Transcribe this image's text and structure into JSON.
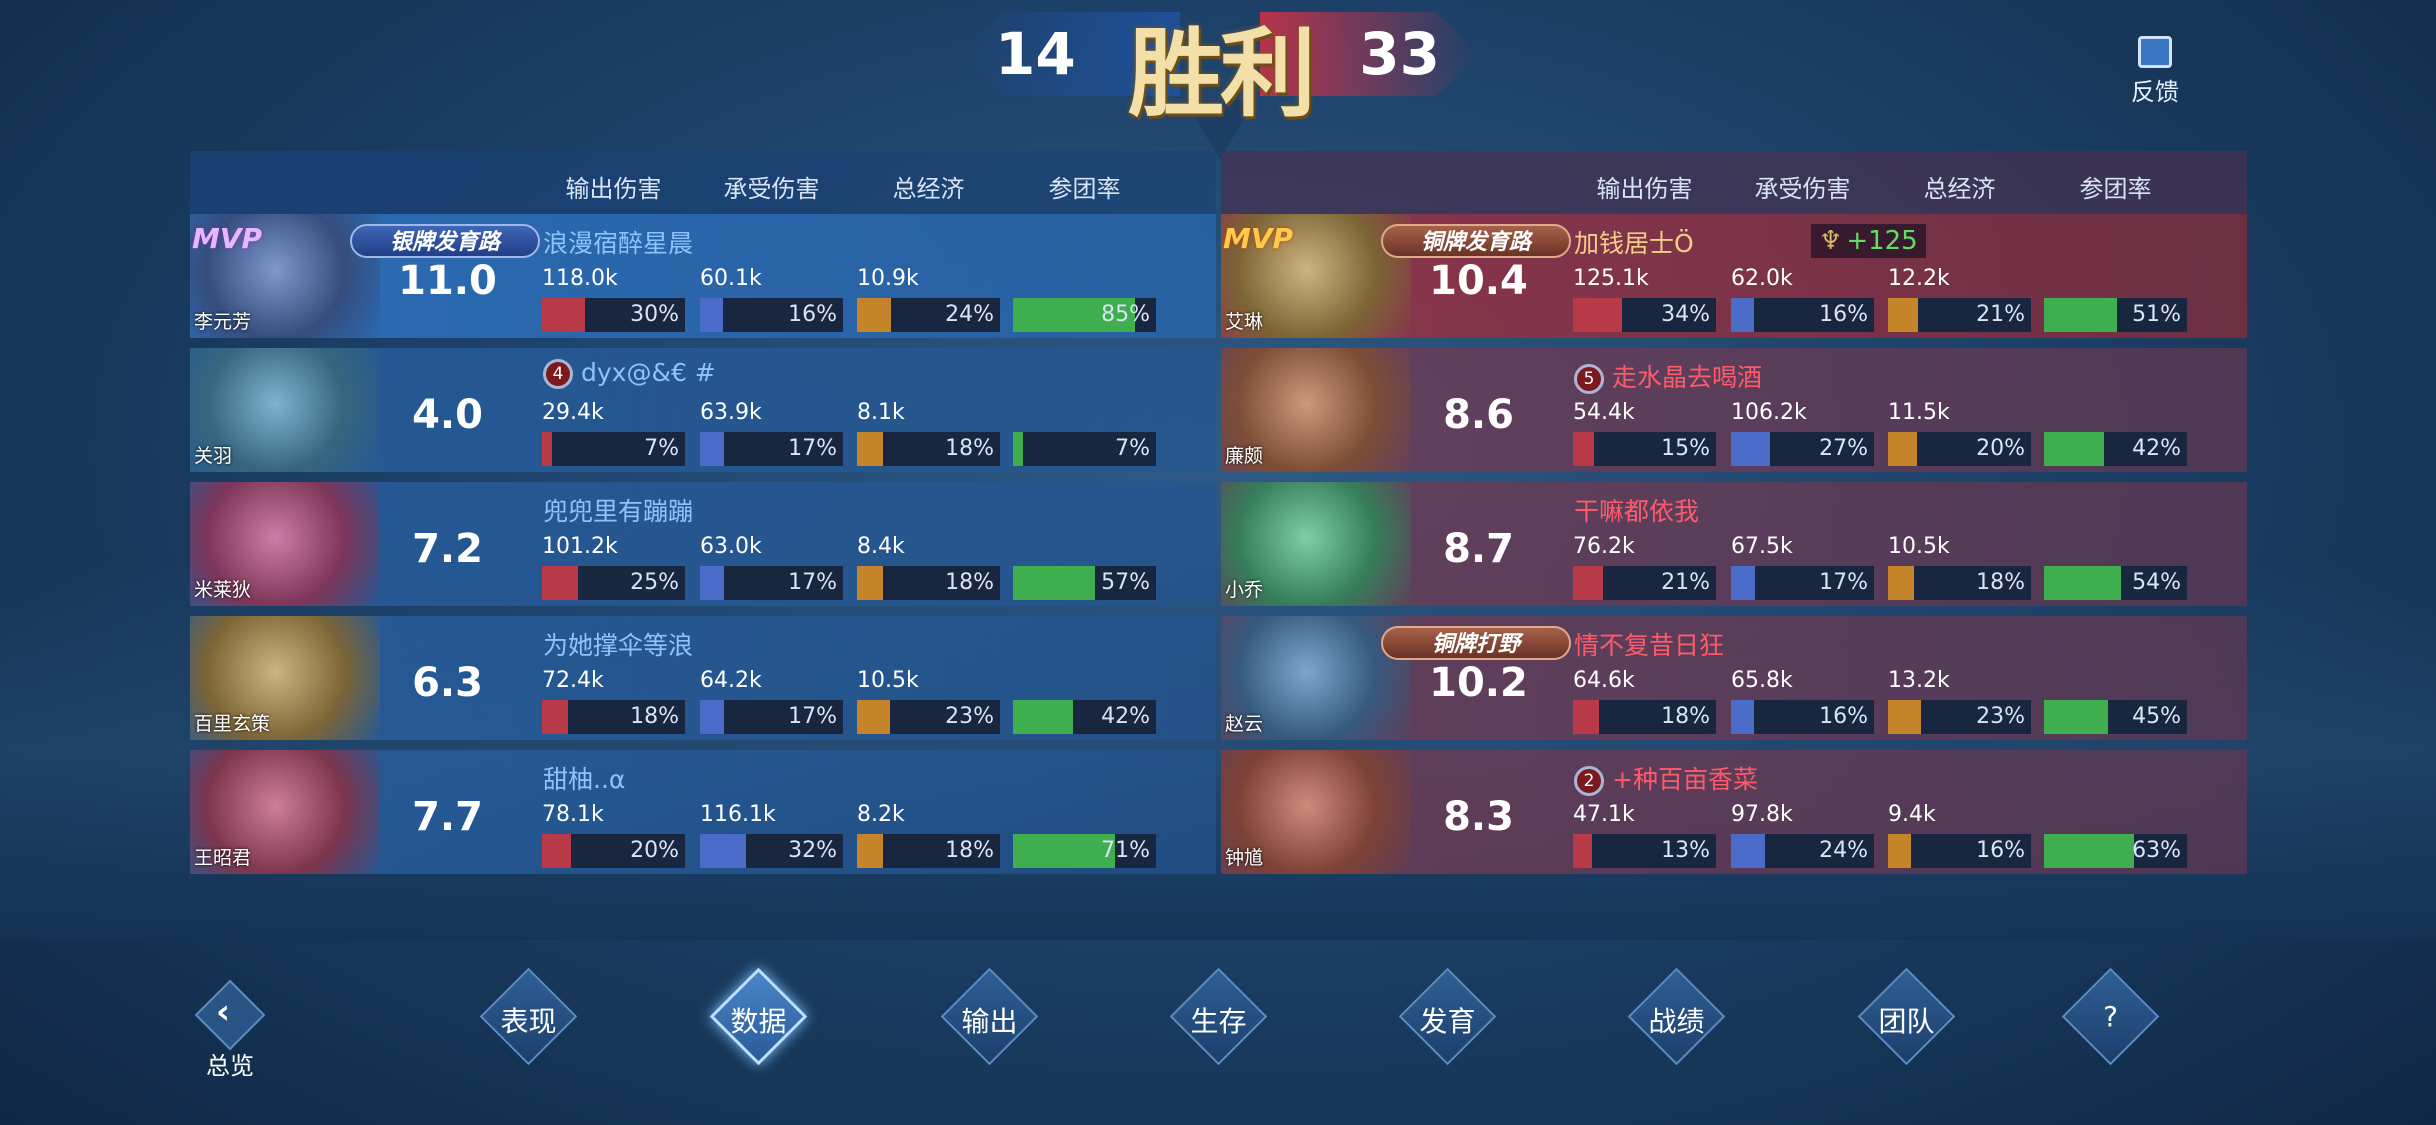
{
  "banner": {
    "score_left": "14",
    "title": "胜利",
    "score_right": "33"
  },
  "feedback": {
    "label": "反馈"
  },
  "headers": [
    "输出伤害",
    "承受伤害",
    "总经济",
    "参团率"
  ],
  "colors": {
    "damage": "#b83a48",
    "taken": "#4a6cc8",
    "gold": "#c6842a",
    "participation": "#3fae4e"
  },
  "left": [
    {
      "hero": "李元芳",
      "mvp": "MVP",
      "badge": "银牌发育路",
      "badge_type": "silver",
      "name": "浪漫宿醉星晨",
      "score": "11.0",
      "values": [
        "118.0k",
        "60.1k",
        "10.9k"
      ],
      "pcts": [
        30,
        16,
        24,
        85
      ]
    },
    {
      "hero": "关羽",
      "rank": "4",
      "name": "dyx@&€ #",
      "score": "4.0",
      "values": [
        "29.4k",
        "63.9k",
        "8.1k"
      ],
      "pcts": [
        7,
        17,
        18,
        7
      ]
    },
    {
      "hero": "米莱狄",
      "name": "兜兜里有蹦蹦",
      "score": "7.2",
      "values": [
        "101.2k",
        "63.0k",
        "8.4k"
      ],
      "pcts": [
        25,
        17,
        18,
        57
      ]
    },
    {
      "hero": "百里玄策",
      "name": "为她撑伞等浪",
      "score": "6.3",
      "values": [
        "72.4k",
        "64.2k",
        "10.5k"
      ],
      "pcts": [
        18,
        17,
        23,
        42
      ]
    },
    {
      "hero": "王昭君",
      "name": "甜柚..α",
      "score": "7.7",
      "values": [
        "78.1k",
        "116.1k",
        "8.2k"
      ],
      "pcts": [
        20,
        32,
        18,
        71
      ]
    }
  ],
  "right": [
    {
      "hero": "艾琳",
      "mvp": "MVP",
      "badge": "铜牌发育路",
      "badge_type": "bronze",
      "name": "加钱居士Ö",
      "bonus": "+125",
      "score": "10.4",
      "values": [
        "125.1k",
        "62.0k",
        "12.2k"
      ],
      "pcts": [
        34,
        16,
        21,
        51
      ]
    },
    {
      "hero": "廉颇",
      "rank": "5",
      "name": "走水晶去喝酒",
      "score": "8.6",
      "values": [
        "54.4k",
        "106.2k",
        "11.5k"
      ],
      "pcts": [
        15,
        27,
        20,
        42
      ]
    },
    {
      "hero": "小乔",
      "name": "干嘛都依我",
      "score": "8.7",
      "values": [
        "76.2k",
        "67.5k",
        "10.5k"
      ],
      "pcts": [
        21,
        17,
        18,
        54
      ]
    },
    {
      "hero": "赵云",
      "badge": "铜牌打野",
      "badge_type": "bronze",
      "name": "情不复昔日狂",
      "score": "10.2",
      "values": [
        "64.6k",
        "65.8k",
        "13.2k"
      ],
      "pcts": [
        18,
        16,
        23,
        45
      ]
    },
    {
      "hero": "钟馗",
      "rank": "2",
      "name": "+种百亩香菜",
      "score": "8.3",
      "values": [
        "47.1k",
        "97.8k",
        "9.4k"
      ],
      "pcts": [
        13,
        24,
        16,
        63
      ]
    }
  ],
  "nav": {
    "back": "总览",
    "tabs": [
      "表现",
      "数据",
      "输出",
      "生存",
      "发育",
      "战绩",
      "团队",
      "?"
    ],
    "active": 1
  }
}
